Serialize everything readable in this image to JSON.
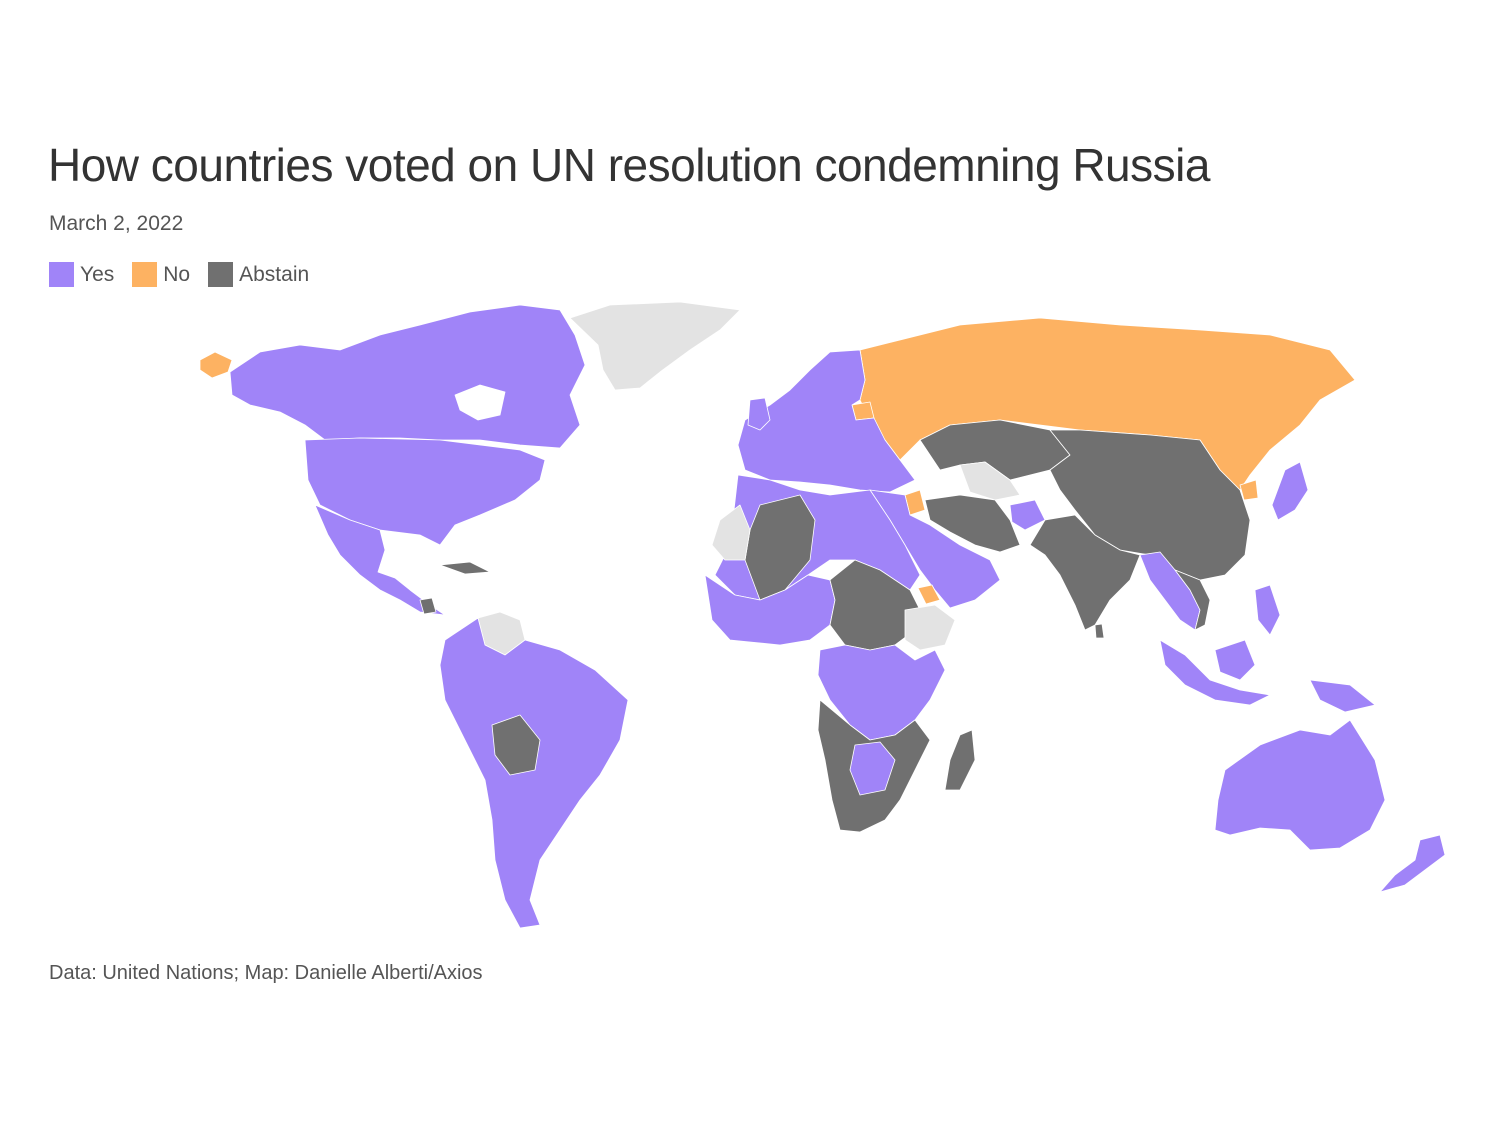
{
  "header": {
    "title": "How countries voted on UN resolution condemning Russia",
    "date": "March 2, 2022"
  },
  "legend": [
    {
      "label": "Yes",
      "color": "#a084f8"
    },
    {
      "label": "No",
      "color": "#fdb262"
    },
    {
      "label": "Abstain",
      "color": "#707070"
    }
  ],
  "colors": {
    "yes": "#a084f8",
    "no": "#fdb262",
    "abstain": "#707070",
    "no_vote": "#e3e3e3"
  },
  "footer": {
    "source": "Data: United Nations; Map: Danielle Alberti/Axios"
  }
}
